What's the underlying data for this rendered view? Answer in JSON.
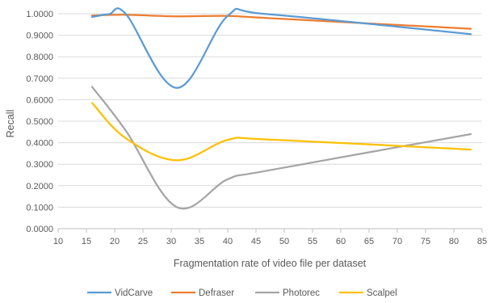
{
  "chart_data": {
    "type": "line",
    "title": "",
    "xlabel": "Fragmentation rate of video file per dataset",
    "ylabel": "Recall",
    "xlim": [
      10,
      85
    ],
    "ylim": [
      0,
      1
    ],
    "x_ticks": [
      "10",
      "15",
      "20",
      "25",
      "30",
      "35",
      "40",
      "45",
      "50",
      "55",
      "60",
      "65",
      "70",
      "75",
      "80",
      "85"
    ],
    "y_ticks": [
      "0.0000",
      "0.1000",
      "0.2000",
      "0.3000",
      "0.4000",
      "0.5000",
      "0.6000",
      "0.7000",
      "0.8000",
      "0.9000",
      "1.0000"
    ],
    "grid": "horizontal",
    "legend_position": "bottom",
    "series": [
      {
        "name": "VidCarve",
        "color": "#5b9bd5",
        "x": [
          16,
          19,
          22,
          31,
          40,
          47,
          83
        ],
        "y": [
          0.985,
          0.998,
          0.998,
          0.655,
          0.99,
          0.998,
          0.905
        ]
      },
      {
        "name": "Defraser",
        "color": "#ed7d31",
        "x": [
          16,
          22,
          31,
          40,
          47,
          83
        ],
        "y": [
          0.992,
          0.995,
          0.988,
          0.99,
          0.98,
          0.93
        ]
      },
      {
        "name": "Photorec",
        "color": "#a5a5a5",
        "x": [
          16,
          22,
          31,
          40,
          47,
          83
        ],
        "y": [
          0.66,
          0.455,
          0.1,
          0.23,
          0.27,
          0.44
        ]
      },
      {
        "name": "Scalpel",
        "color": "#ffc000",
        "x": [
          16,
          22,
          31,
          40,
          47,
          83
        ],
        "y": [
          0.585,
          0.42,
          0.318,
          0.413,
          0.415,
          0.368
        ]
      }
    ]
  }
}
